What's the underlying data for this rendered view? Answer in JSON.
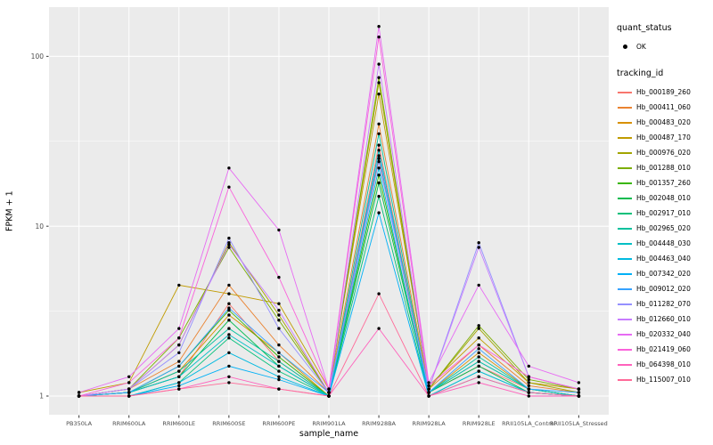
{
  "chart_data": {
    "type": "line",
    "title": "",
    "xlabel": "sample_name",
    "ylabel": "FPKM + 1",
    "y_scale": "log10",
    "y_ticks": [
      1,
      10,
      100
    ],
    "y_minor": [
      3.162,
      31.62
    ],
    "ylim": [
      1,
      170
    ],
    "grid": true,
    "legend_position": "right",
    "colors": {
      "panel_bg": "#EBEBEB",
      "grid": "#FFFFFF",
      "point": "#000000",
      "axis_text": "#4D4D4D",
      "tick_mark": "#333333"
    },
    "categories": [
      "PB350LA",
      "RRIM600LA",
      "RRIM600LE",
      "RRIM600SE",
      "RRIM600PE",
      "RRIM901LA",
      "RRIM928BA",
      "RRIM928LA",
      "RRIM928LE",
      "RRII105LA_Control",
      "RRII105LA_Stressed"
    ],
    "legend": {
      "quant_status": {
        "title": "quant_status",
        "entries": [
          {
            "label": "OK"
          }
        ]
      },
      "tracking_id": {
        "title": "tracking_id"
      }
    },
    "series": [
      {
        "name": "Hb_000189_260",
        "color": "#F8766D",
        "values": [
          1.0,
          1.05,
          1.3,
          3.5,
          1.6,
          1.0,
          30,
          1.05,
          1.5,
          1.1,
          1.0
        ]
      },
      {
        "name": "Hb_000411_060",
        "color": "#EA8331",
        "values": [
          1.0,
          1.1,
          1.6,
          4.5,
          2.0,
          1.05,
          40,
          1.1,
          2.0,
          1.15,
          1.05
        ]
      },
      {
        "name": "Hb_000483_020",
        "color": "#D89000",
        "values": [
          1.0,
          1.05,
          1.4,
          3.0,
          1.8,
          1.0,
          25,
          1.05,
          1.8,
          1.1,
          1.0
        ]
      },
      {
        "name": "Hb_000487_170",
        "color": "#C09B00",
        "values": [
          1.05,
          1.2,
          4.5,
          4.0,
          3.5,
          1.1,
          60,
          1.15,
          2.2,
          1.2,
          1.1
        ]
      },
      {
        "name": "Hb_000976_020",
        "color": "#A3A500",
        "values": [
          1.0,
          1.1,
          2.0,
          8.0,
          3.0,
          1.05,
          70,
          1.1,
          2.5,
          1.2,
          1.05
        ]
      },
      {
        "name": "Hb_001288_010",
        "color": "#7CAE00",
        "values": [
          1.0,
          1.1,
          2.2,
          7.5,
          2.8,
          1.05,
          75,
          1.1,
          2.6,
          1.25,
          1.1
        ]
      },
      {
        "name": "Hb_001357_260",
        "color": "#39B600",
        "values": [
          1.0,
          1.05,
          1.5,
          3.2,
          1.7,
          1.0,
          20,
          1.05,
          1.6,
          1.1,
          1.0
        ]
      },
      {
        "name": "Hb_002048_010",
        "color": "#00BB4E",
        "values": [
          1.0,
          1.05,
          1.3,
          2.8,
          1.5,
          1.0,
          18,
          1.05,
          1.5,
          1.05,
          1.0
        ]
      },
      {
        "name": "Hb_002917_010",
        "color": "#00C079",
        "values": [
          1.0,
          1.0,
          1.2,
          2.2,
          1.4,
          1.0,
          15,
          1.0,
          1.4,
          1.05,
          1.0
        ]
      },
      {
        "name": "Hb_002965_020",
        "color": "#00C19C",
        "values": [
          1.0,
          1.05,
          1.4,
          2.5,
          1.6,
          1.0,
          35,
          1.05,
          1.7,
          1.1,
          1.0
        ]
      },
      {
        "name": "Hb_004448_030",
        "color": "#00BFC4",
        "values": [
          1.0,
          1.05,
          1.3,
          2.3,
          1.5,
          1.0,
          28,
          1.05,
          1.6,
          1.1,
          1.0
        ]
      },
      {
        "name": "Hb_004463_040",
        "color": "#00BAE0",
        "values": [
          1.0,
          1.0,
          1.2,
          1.8,
          1.3,
          1.0,
          22,
          1.0,
          1.4,
          1.05,
          1.0
        ]
      },
      {
        "name": "Hb_007342_020",
        "color": "#00B0F6",
        "values": [
          1.0,
          1.0,
          1.15,
          1.5,
          1.25,
          1.0,
          12,
          1.0,
          1.3,
          1.05,
          1.0
        ]
      },
      {
        "name": "Hb_009012_020",
        "color": "#35A2FF",
        "values": [
          1.0,
          1.05,
          1.5,
          3.3,
          1.8,
          1.05,
          26,
          1.05,
          1.9,
          1.1,
          1.05
        ]
      },
      {
        "name": "Hb_011282_070",
        "color": "#9590FF",
        "values": [
          1.0,
          1.1,
          1.8,
          8.5,
          2.5,
          1.05,
          24,
          1.1,
          8.0,
          1.3,
          1.1
        ]
      },
      {
        "name": "Hb_012660_010",
        "color": "#C77CFF",
        "values": [
          1.0,
          1.1,
          2.0,
          7.8,
          3.2,
          1.05,
          90,
          1.1,
          7.5,
          1.3,
          1.1
        ]
      },
      {
        "name": "Hb_020332_040",
        "color": "#E76BF3",
        "values": [
          1.05,
          1.3,
          2.5,
          22,
          9.5,
          1.1,
          150,
          1.2,
          4.5,
          1.5,
          1.2
        ]
      },
      {
        "name": "Hb_021419_060",
        "color": "#FA62DB",
        "values": [
          1.0,
          1.2,
          2.2,
          17,
          5.0,
          1.1,
          130,
          1.15,
          2.0,
          1.3,
          1.1
        ]
      },
      {
        "name": "Hb_064398_010",
        "color": "#FF62BC",
        "values": [
          1.0,
          1.0,
          1.1,
          1.3,
          1.1,
          1.0,
          2.5,
          1.0,
          1.2,
          1.0,
          1.0
        ]
      },
      {
        "name": "Hb_115007_010",
        "color": "#FF6A98",
        "values": [
          1.0,
          1.0,
          1.1,
          1.2,
          1.1,
          1.0,
          4.0,
          1.0,
          1.3,
          1.05,
          1.0
        ]
      }
    ]
  }
}
